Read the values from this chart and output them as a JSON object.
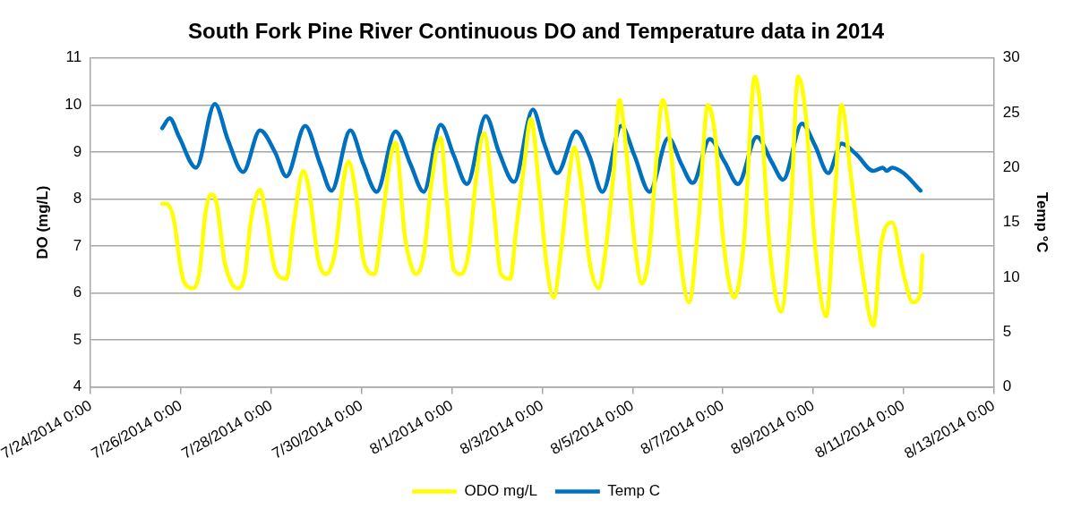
{
  "chart_data": {
    "type": "line",
    "title": "South Fork Pine River Continuous DO and Temperature data in 2014",
    "ylabel": "DO (mg/L)",
    "y2label": "Temp °C",
    "xlim": [
      "2014-07-24T00:00",
      "2014-08-13T00:00"
    ],
    "xticks": [
      {
        "value": "2014-07-24T00:00",
        "label": "7/24/2014 0:00"
      },
      {
        "value": "2014-07-26T00:00",
        "label": "7/26/2014 0:00"
      },
      {
        "value": "2014-07-28T00:00",
        "label": "7/28/2014 0:00"
      },
      {
        "value": "2014-07-30T00:00",
        "label": "7/30/2014 0:00"
      },
      {
        "value": "2014-08-01T00:00",
        "label": "8/1/2014 0:00"
      },
      {
        "value": "2014-08-03T00:00",
        "label": "8/3/2014 0:00"
      },
      {
        "value": "2014-08-05T00:00",
        "label": "8/5/2014 0:00"
      },
      {
        "value": "2014-08-07T00:00",
        "label": "8/7/2014 0:00"
      },
      {
        "value": "2014-08-09T00:00",
        "label": "8/9/2014 0:00"
      },
      {
        "value": "2014-08-11T00:00",
        "label": "8/11/2014 0:00"
      },
      {
        "value": "2014-08-13T00:00",
        "label": "8/13/2014 0:00"
      }
    ],
    "ylim": [
      4,
      11
    ],
    "yticks": [
      4,
      5,
      6,
      7,
      8,
      9,
      10,
      11
    ],
    "y2lim": [
      0,
      30
    ],
    "y2ticks": [
      0,
      5,
      10,
      15,
      20,
      25,
      30
    ],
    "grid": "y",
    "legend": "bottom",
    "marker": "none",
    "line_style": "solid",
    "series": [
      {
        "name": "ODO mg/L",
        "color": "#ffff00",
        "x": [
          "2014-07-25T14:00",
          "2014-07-25T16:00",
          "2014-07-25T20:00",
          "2014-07-26T00:00",
          "2014-07-26T02:00",
          "2014-07-26T07:00",
          "2014-07-26T10:00",
          "2014-07-26T13:00",
          "2014-07-26T16:00",
          "2014-07-26T19:00",
          "2014-07-26T23:00",
          "2014-07-27T03:00",
          "2014-07-27T06:00",
          "2014-07-27T10:00",
          "2014-07-27T13:00",
          "2014-07-27T18:00",
          "2014-07-27T21:00",
          "2014-07-28T02:00",
          "2014-07-28T08:00",
          "2014-07-28T12:00",
          "2014-07-28T17:00",
          "2014-07-28T20:00",
          "2014-07-29T01:00",
          "2014-07-29T05:00",
          "2014-07-29T10:00",
          "2014-07-29T14:00",
          "2014-07-29T17:00",
          "2014-07-29T21:00",
          "2014-07-30T01:00",
          "2014-07-30T07:00",
          "2014-07-30T10:00",
          "2014-07-30T15:00",
          "2014-07-30T18:00",
          "2014-07-30T23:00",
          "2014-07-31T03:00",
          "2014-07-31T05:00",
          "2014-07-31T09:00",
          "2014-07-31T13:00",
          "2014-07-31T18:00",
          "2014-07-31T21:00",
          "2014-08-01T01:00",
          "2014-08-01T05:00",
          "2014-08-01T09:00",
          "2014-08-01T13:00",
          "2014-08-01T17:00",
          "2014-08-01T22:00",
          "2014-08-02T02:00",
          "2014-08-02T07:00",
          "2014-08-02T10:00",
          "2014-08-02T14:00",
          "2014-08-02T18:00",
          "2014-08-02T22:00",
          "2014-08-03T02:00",
          "2014-08-03T06:00",
          "2014-08-03T10:00",
          "2014-08-03T14:00",
          "2014-08-03T17:00",
          "2014-08-03T21:00",
          "2014-08-04T01:00",
          "2014-08-04T06:00",
          "2014-08-04T09:00",
          "2014-08-04T14:00",
          "2014-08-04T17:00",
          "2014-08-04T20:00",
          "2014-08-05T01:00",
          "2014-08-05T05:00",
          "2014-08-05T09:00",
          "2014-08-05T12:00",
          "2014-08-05T16:00",
          "2014-08-05T20:00",
          "2014-08-06T01:00",
          "2014-08-06T06:00",
          "2014-08-06T11:00",
          "2014-08-06T16:00",
          "2014-08-06T20:00",
          "2014-08-07T00:00",
          "2014-08-07T06:00",
          "2014-08-07T11:00",
          "2014-08-07T17:00",
          "2014-08-07T20:00",
          "2014-08-08T01:00",
          "2014-08-08T07:00",
          "2014-08-08T12:00",
          "2014-08-08T16:00",
          "2014-08-08T20:00",
          "2014-08-09T01:00",
          "2014-08-09T07:00",
          "2014-08-09T11:00",
          "2014-08-09T15:00",
          "2014-08-09T20:00",
          "2014-08-10T02:00",
          "2014-08-10T08:00",
          "2014-08-10T12:00",
          "2014-08-10T18:00",
          "2014-08-11T00:00",
          "2014-08-11T05:00",
          "2014-08-11T09:00",
          "2014-08-11T10:00"
        ],
        "values": [
          7.9,
          7.9,
          7.6,
          6.5,
          6.2,
          6.1,
          6.5,
          7.7,
          8.1,
          7.9,
          6.7,
          6.2,
          6.1,
          6.4,
          7.5,
          8.2,
          7.7,
          6.5,
          6.3,
          7.5,
          8.6,
          8.2,
          6.7,
          6.4,
          6.9,
          8.3,
          8.8,
          8.1,
          6.7,
          6.4,
          7.2,
          8.8,
          9.2,
          7.2,
          6.5,
          6.4,
          6.8,
          8.3,
          9.3,
          8.1,
          6.5,
          6.4,
          6.9,
          8.5,
          9.4,
          7.9,
          6.4,
          6.3,
          7.3,
          8.6,
          9.7,
          8.4,
          6.7,
          5.9,
          6.9,
          8.4,
          9.1,
          8.2,
          6.7,
          6.1,
          6.7,
          8.6,
          10.1,
          9.3,
          7.1,
          6.2,
          6.9,
          8.5,
          10.1,
          9.2,
          6.9,
          5.8,
          7.5,
          10,
          9.3,
          7.2,
          5.9,
          7,
          10.6,
          9.9,
          6.9,
          5.6,
          7.7,
          10.6,
          9.8,
          7,
          5.5,
          7.7,
          10,
          8.5,
          6.5,
          5.3,
          7,
          7.5,
          6.4,
          5.8,
          6,
          6.8
        ]
      },
      {
        "name": "Temp C",
        "color": "#0070c0",
        "axis": "y2",
        "x": [
          "2014-07-25T14:00",
          "2014-07-25T18:00",
          "2014-07-25T23:00",
          "2014-07-26T08:00",
          "2014-07-26T18:00",
          "2014-07-27T01:00",
          "2014-07-27T09:00",
          "2014-07-27T18:00",
          "2014-07-28T02:00",
          "2014-07-28T08:00",
          "2014-07-28T18:00",
          "2014-07-29T02:00",
          "2014-07-29T08:00",
          "2014-07-29T18:00",
          "2014-07-30T01:00",
          "2014-07-30T08:00",
          "2014-07-30T18:00",
          "2014-07-31T02:00",
          "2014-07-31T09:00",
          "2014-07-31T18:00",
          "2014-08-01T01:00",
          "2014-08-01T08:00",
          "2014-08-01T18:00",
          "2014-08-02T01:00",
          "2014-08-02T09:00",
          "2014-08-02T19:00",
          "2014-08-03T01:00",
          "2014-08-03T08:00",
          "2014-08-03T18:00",
          "2014-08-04T01:00",
          "2014-08-04T08:00",
          "2014-08-04T18:00",
          "2014-08-05T01:00",
          "2014-08-05T09:00",
          "2014-08-05T19:00",
          "2014-08-06T02:00",
          "2014-08-06T08:00",
          "2014-08-06T17:00",
          "2014-08-07T01:00",
          "2014-08-07T08:00",
          "2014-08-07T18:00",
          "2014-08-08T02:00",
          "2014-08-08T08:00",
          "2014-08-08T18:00",
          "2014-08-09T01:00",
          "2014-08-09T08:00",
          "2014-08-09T15:00",
          "2014-08-09T23:00",
          "2014-08-10T08:00",
          "2014-08-10T13:00",
          "2014-08-10T15:00",
          "2014-08-10T18:00",
          "2014-08-11T00:00",
          "2014-08-11T09:00"
        ],
        "values": [
          23.6,
          24.5,
          22.8,
          20,
          25.8,
          22.5,
          19.6,
          23.4,
          21.4,
          19.2,
          23.8,
          20.3,
          17.9,
          23.4,
          20.3,
          17.8,
          23.3,
          20.3,
          17.8,
          23.9,
          21.1,
          18.5,
          24.7,
          21.4,
          18.7,
          25.3,
          22.2,
          19.5,
          23.3,
          21.1,
          17.8,
          23.8,
          21.1,
          17.8,
          22.7,
          20.3,
          18.6,
          22.6,
          20.5,
          18.5,
          22.8,
          20.5,
          18.9,
          24,
          22,
          19.5,
          22.2,
          21.2,
          19.7,
          20,
          19.7,
          20,
          19.5,
          17.9
        ]
      }
    ]
  }
}
